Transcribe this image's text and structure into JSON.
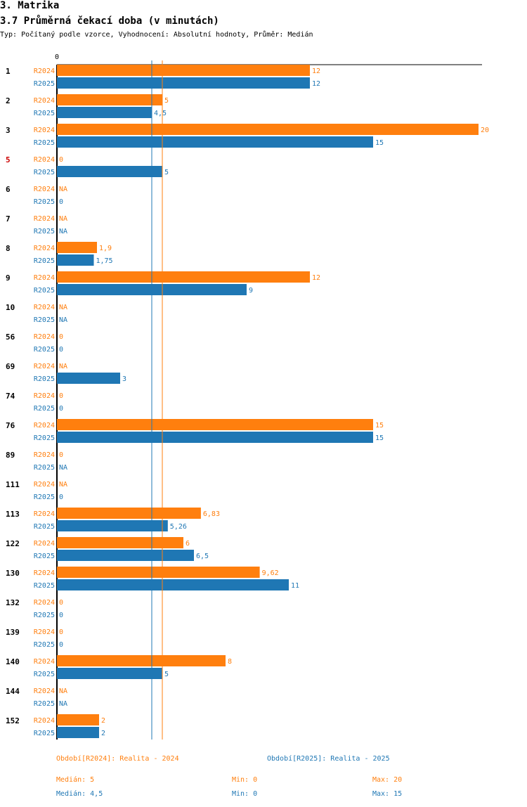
{
  "page": {
    "section_title": "3. Matrika",
    "chart_title": "3.7 Průměrná čekací doba (v minutách)",
    "subtitle": "Typ: Počítaný podle vzorce, Vyhodnocení: Absolutní hodnoty, Průměr: Medián"
  },
  "colors": {
    "r2024": "#ff7f0e",
    "r2025": "#1f77b4",
    "highlight_label": "#cc0000"
  },
  "chart_data": {
    "type": "bar",
    "orientation": "horizontal",
    "title": "3.7 Průměrná čekací doba (v minutách)",
    "axis_zero_label": "0",
    "xlim": [
      0,
      20
    ],
    "categories": [
      "1",
      "2",
      "3",
      "5",
      "6",
      "7",
      "8",
      "9",
      "10",
      "56",
      "69",
      "74",
      "76",
      "89",
      "111",
      "113",
      "122",
      "130",
      "132",
      "139",
      "140",
      "144",
      "152"
    ],
    "highlighted_categories": [
      "5"
    ],
    "series": [
      {
        "name": "R2024",
        "values": [
          12,
          5,
          20,
          0,
          null,
          null,
          1.9,
          12,
          null,
          0,
          null,
          0,
          15,
          0,
          null,
          6.83,
          6,
          9.62,
          0,
          0,
          8,
          null,
          2
        ],
        "labels": [
          "12",
          "5",
          "20",
          "0",
          "NA",
          "NA",
          "1,9",
          "12",
          "NA",
          "0",
          "NA",
          "0",
          "15",
          "0",
          "NA",
          "6,83",
          "6",
          "9,62",
          "0",
          "0",
          "8",
          "NA",
          "2"
        ]
      },
      {
        "name": "R2025",
        "values": [
          12,
          4.5,
          15,
          5,
          0,
          null,
          1.75,
          9,
          null,
          0,
          3,
          0,
          15,
          null,
          0,
          5.26,
          6.5,
          11,
          0,
          0,
          5,
          null,
          2
        ],
        "labels": [
          "12",
          "4,5",
          "15",
          "5",
          "0",
          "NA",
          "1,75",
          "9",
          "NA",
          "0",
          "3",
          "0",
          "15",
          "NA",
          "0",
          "5,26",
          "6,5",
          "11",
          "0",
          "0",
          "5",
          "NA",
          "2"
        ]
      }
    ],
    "reference_lines": [
      {
        "series": "R2024",
        "statistic": "Medián",
        "value": 5
      },
      {
        "series": "R2025",
        "statistic": "Medián",
        "value": 4.5
      }
    ]
  },
  "legend": {
    "r2024": "Období[R2024]: Realita - 2024",
    "r2025": "Období[R2025]: Realita - 2025"
  },
  "stats": {
    "r2024": {
      "median": "Medián: 5",
      "min": "Min: 0",
      "max": "Max: 20"
    },
    "r2025": {
      "median": "Medián: 4,5",
      "min": "Min: 0",
      "max": "Max: 15"
    }
  }
}
